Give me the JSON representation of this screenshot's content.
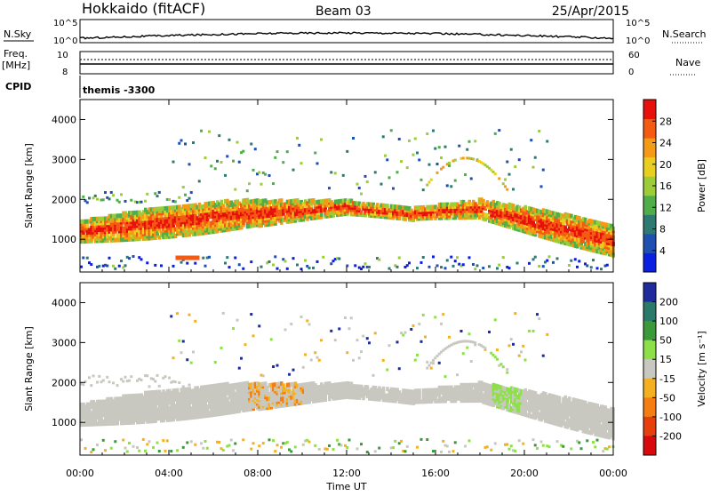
{
  "header": {
    "title": "Hokkaido (fitACF)",
    "beam": "Beam 03",
    "date": "25/Apr/2015"
  },
  "top_panels": {
    "nsky_label": "N.Sky",
    "nsky_ticks": [
      "10^5",
      "10^0"
    ],
    "nsky_right_ticks": [
      "10^5",
      "10^0"
    ],
    "nsearch_label": "N.Search",
    "freq_label": "Freq.",
    "freq_unit": "[MHz]",
    "freq_ticks": [
      "10",
      "8"
    ],
    "nave_ticks": [
      "60",
      "0"
    ],
    "nave_label": "Nave",
    "cpid_label": "CPID",
    "cpid_value": "themis -3300"
  },
  "chart_data": [
    {
      "type": "heatmap",
      "name": "power",
      "xlabel": "",
      "ylabel": "Slant Range [km]",
      "x_ticks": [
        "00:00",
        "04:00",
        "08:00",
        "12:00",
        "16:00",
        "20:00",
        "00:00"
      ],
      "y_ticks": [
        1000,
        2000,
        3000,
        4000
      ],
      "xlim_hours": [
        0,
        24
      ],
      "ylim_km": [
        180,
        4500
      ],
      "colorbar_label": "Power [dB]",
      "colorbar_ticks": [
        4,
        8,
        12,
        16,
        20,
        24,
        28
      ],
      "colors": [
        "#0a1fe0",
        "#1f4fb0",
        "#2e7a72",
        "#4fae4a",
        "#9ccc38",
        "#e8cf1f",
        "#f59a14",
        "#f55a12",
        "#e8100c"
      ]
    },
    {
      "type": "heatmap",
      "name": "velocity",
      "xlabel": "Time UT",
      "ylabel": "Slant Range [km]",
      "x_ticks": [
        "00:00",
        "04:00",
        "08:00",
        "12:00",
        "16:00",
        "20:00",
        "00:00"
      ],
      "y_ticks": [
        1000,
        2000,
        3000,
        4000
      ],
      "xlim_hours": [
        0,
        24
      ],
      "ylim_km": [
        180,
        4500
      ],
      "colorbar_label": "Velocity [m s⁻¹]",
      "colorbar_ticks": [
        200,
        100,
        50,
        15,
        -15,
        -50,
        -100,
        -200
      ],
      "colors": [
        "#1f2a9c",
        "#2a7a6a",
        "#3a9a3a",
        "#8ee04a",
        "#c8c8c0",
        "#f5b021",
        "#f57d12",
        "#e63e0c",
        "#d8080c"
      ]
    }
  ]
}
